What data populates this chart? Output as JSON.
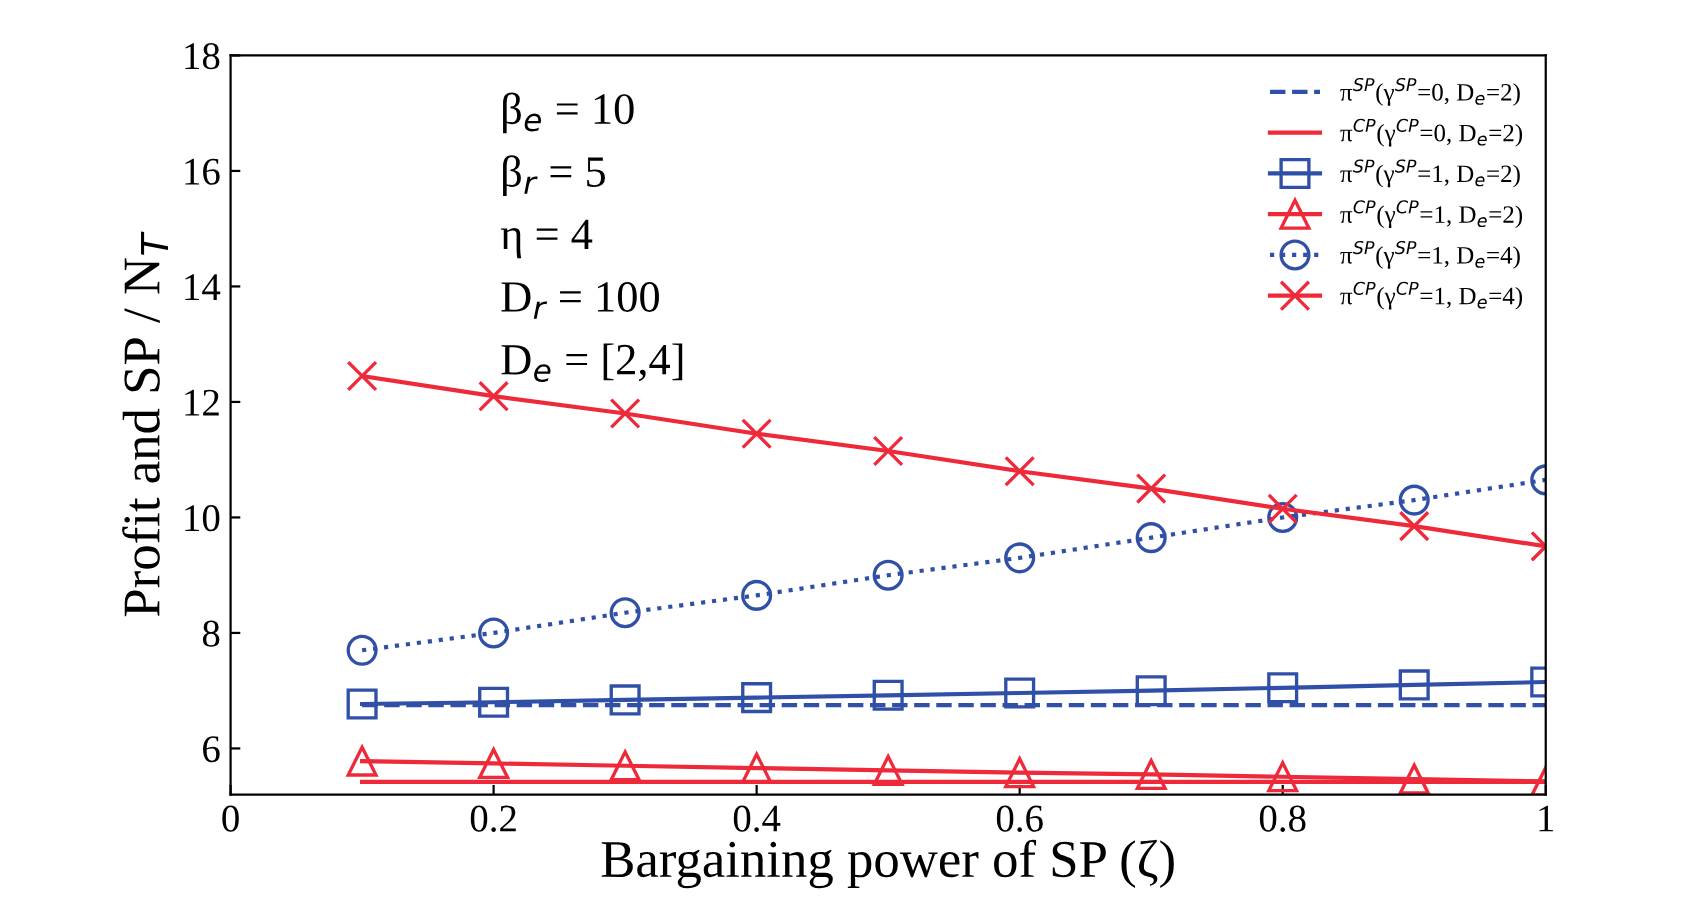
{
  "chart_data": {
    "type": "line",
    "xlabel": "Bargaining power of SP (ζ)",
    "ylabel": "Profit and SP / N$_{T}$",
    "x": [
      0.1,
      0.2,
      0.3,
      0.4,
      0.5,
      0.6,
      0.7,
      0.8,
      0.9,
      1
    ],
    "xlim": [
      0,
      1
    ],
    "xticks": [
      0,
      0.2,
      0.4,
      0.6,
      0.8,
      1
    ],
    "ylim": [
      5.2,
      18
    ],
    "yticks": [
      6,
      8,
      10,
      12,
      14,
      16,
      18
    ],
    "grid": false,
    "legend": "top right",
    "annotations": [
      "β$_{e}$ = 10",
      "β$_{r}$ = 5",
      "η = 4",
      "D$_{r}$ = 100",
      "D$_{e}$ = [2,4]"
    ],
    "series": [
      {
        "name": "π$^{SP}$(γ$^{SP}$=0, D$_{e}$=2)",
        "color": "#3050a8",
        "marker": "none",
        "line_style": "dashed",
        "values": [
          6.75,
          6.75,
          6.75,
          6.75,
          6.75,
          6.75,
          6.75,
          6.75,
          6.75,
          6.75
        ]
      },
      {
        "name": "π$^{CP}$(γ$^{CP}$=0, D$_{e}$=2)",
        "color": "#ee2a3a",
        "marker": "none",
        "line_style": "solid",
        "values": [
          5.42,
          5.42,
          5.42,
          5.42,
          5.42,
          5.42,
          5.42,
          5.42,
          5.42,
          5.42
        ]
      },
      {
        "name": "π$^{SP}$(γ$^{SP}$=1, D$_{e}$=2)",
        "color": "#3050a8",
        "marker": "square",
        "line_style": "solid",
        "values": [
          6.77,
          6.8,
          6.84,
          6.88,
          6.92,
          6.96,
          7.0,
          7.05,
          7.1,
          7.15
        ]
      },
      {
        "name": "π$^{CP}$(γ$^{CP}$=1, D$_{e}$=2)",
        "color": "#ee2a3a",
        "marker": "triangle",
        "line_style": "solid",
        "values": [
          5.78,
          5.74,
          5.7,
          5.66,
          5.62,
          5.58,
          5.55,
          5.51,
          5.47,
          5.43
        ]
      },
      {
        "name": "π$^{SP}$(γ$^{SP}$=1, D$_{e}$=4)",
        "color": "#3050a8",
        "marker": "circle",
        "line_style": "dotted",
        "values": [
          7.7,
          8.0,
          8.35,
          8.65,
          9.0,
          9.3,
          9.65,
          10.0,
          10.3,
          10.65
        ]
      },
      {
        "name": "π$^{CP}$(γ$^{CP}$=1, D$_{e}$=4)",
        "color": "#ee2a3a",
        "marker": "cross",
        "line_style": "solid",
        "values": [
          12.45,
          12.1,
          11.8,
          11.45,
          11.15,
          10.8,
          10.5,
          10.15,
          9.85,
          9.5
        ]
      }
    ]
  }
}
